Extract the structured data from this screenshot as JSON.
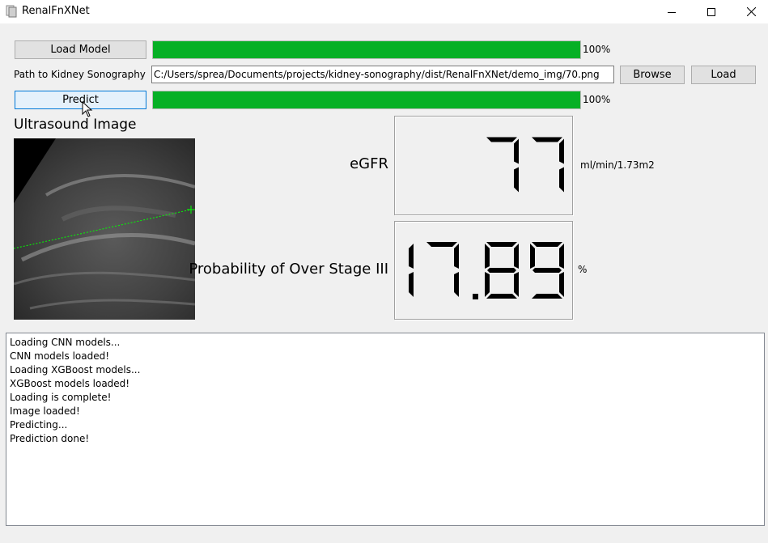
{
  "window": {
    "title": "RenalFnXNet"
  },
  "load_model": {
    "button_label": "Load Model",
    "progress_percent": 100,
    "progress_text": "100%"
  },
  "path_row": {
    "label": "Path to Kidney Sonography",
    "value": "C:/Users/sprea/Documents/projects/kidney-sonography/dist/RenalFnXNet/demo_img/70.png",
    "browse_label": "Browse",
    "load_label": "Load"
  },
  "predict": {
    "button_label": "Predict",
    "progress_percent": 100,
    "progress_text": "100%"
  },
  "image_section": {
    "title": "Ultrasound Image"
  },
  "egfr": {
    "label": "eGFR",
    "value": "77",
    "unit": "ml/min/1.73m2"
  },
  "probability": {
    "label": "Probability of Over Stage III",
    "value": "17.89",
    "unit": "%"
  },
  "log": {
    "lines": [
      "Loading CNN models...",
      "CNN models loaded!",
      "Loading XGBoost models...",
      "XGBoost models loaded!",
      "Loading is complete!",
      "Image loaded!",
      "Predicting...",
      "Prediction done!"
    ]
  },
  "colors": {
    "progress_fill": "#06b025",
    "caliper": "#00ff00",
    "focus": "#0078d7"
  }
}
